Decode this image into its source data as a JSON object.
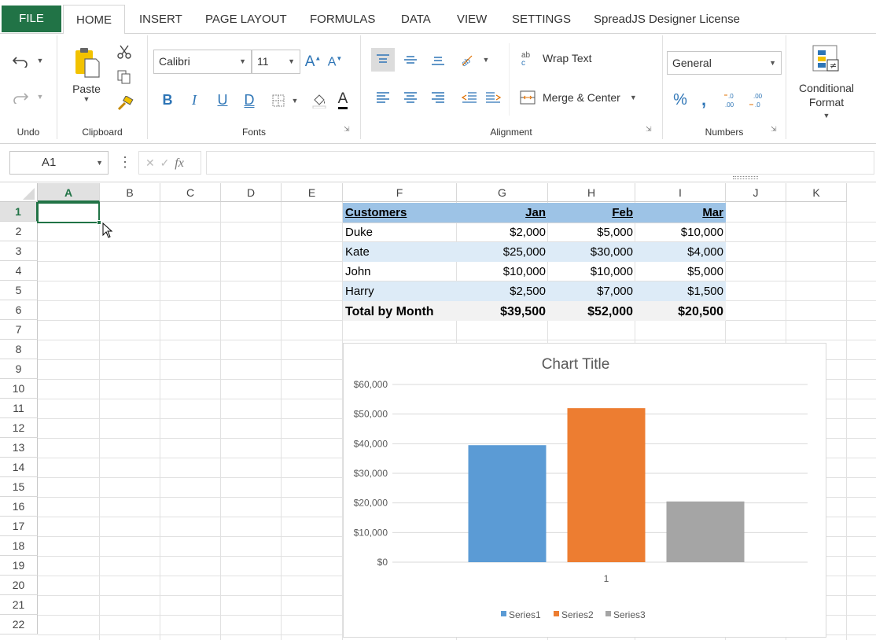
{
  "tabs": [
    "FILE",
    "HOME",
    "INSERT",
    "PAGE LAYOUT",
    "FORMULAS",
    "DATA",
    "VIEW",
    "SETTINGS",
    "SpreadJS Designer License"
  ],
  "ribbon": {
    "undo_group": "Undo",
    "clipboard_group": "Clipboard",
    "paste_label": "Paste",
    "fonts_group": "Fonts",
    "font_name": "Calibri",
    "font_size": "11",
    "alignment_group": "Alignment",
    "wrap_text": "Wrap Text",
    "merge_center": "Merge & Center",
    "numbers_group": "Numbers",
    "number_format": "General",
    "conditional_format_line1": "Conditional",
    "conditional_format_line2": "Format"
  },
  "formula_bar": {
    "name_box": "A1",
    "fx": "fx",
    "formula": ""
  },
  "columns": [
    "A",
    "B",
    "C",
    "D",
    "E",
    "F",
    "G",
    "H",
    "I",
    "J",
    "K"
  ],
  "rows": [
    "1",
    "2",
    "3",
    "4",
    "5",
    "6",
    "7",
    "8",
    "9",
    "10",
    "11",
    "12",
    "13",
    "14",
    "15",
    "16",
    "17",
    "18",
    "19",
    "20",
    "21",
    "22"
  ],
  "table": {
    "header": [
      "Customers",
      "Jan",
      "Feb",
      "Mar"
    ],
    "rows": [
      [
        "Duke",
        "$2,000",
        "$5,000",
        "$10,000"
      ],
      [
        "Kate",
        "$25,000",
        "$30,000",
        "$4,000"
      ],
      [
        "John",
        "$10,000",
        "$10,000",
        "$5,000"
      ],
      [
        "Harry",
        "$2,500",
        "$7,000",
        "$1,500"
      ]
    ],
    "total": [
      "Total by Month",
      "$39,500",
      "$52,000",
      "$20,500"
    ]
  },
  "colors": {
    "file_tab": "#217346",
    "header_fill": "#9dc3e6",
    "band_fill": "#ddebf7",
    "total_fill": "#f2f2f2",
    "selection": "#217346"
  },
  "chart_data": {
    "type": "bar",
    "title": "Chart Title",
    "categories": [
      "1"
    ],
    "series": [
      {
        "name": "Series1",
        "values": [
          39500
        ],
        "color": "#5b9bd5"
      },
      {
        "name": "Series2",
        "values": [
          52000
        ],
        "color": "#ed7d31"
      },
      {
        "name": "Series3",
        "values": [
          20500
        ],
        "color": "#a5a5a5"
      }
    ],
    "yticks": [
      "$0",
      "$10,000",
      "$20,000",
      "$30,000",
      "$40,000",
      "$50,000",
      "$60,000"
    ],
    "ylim": [
      0,
      60000
    ],
    "grid": true,
    "legend": "bottom"
  }
}
